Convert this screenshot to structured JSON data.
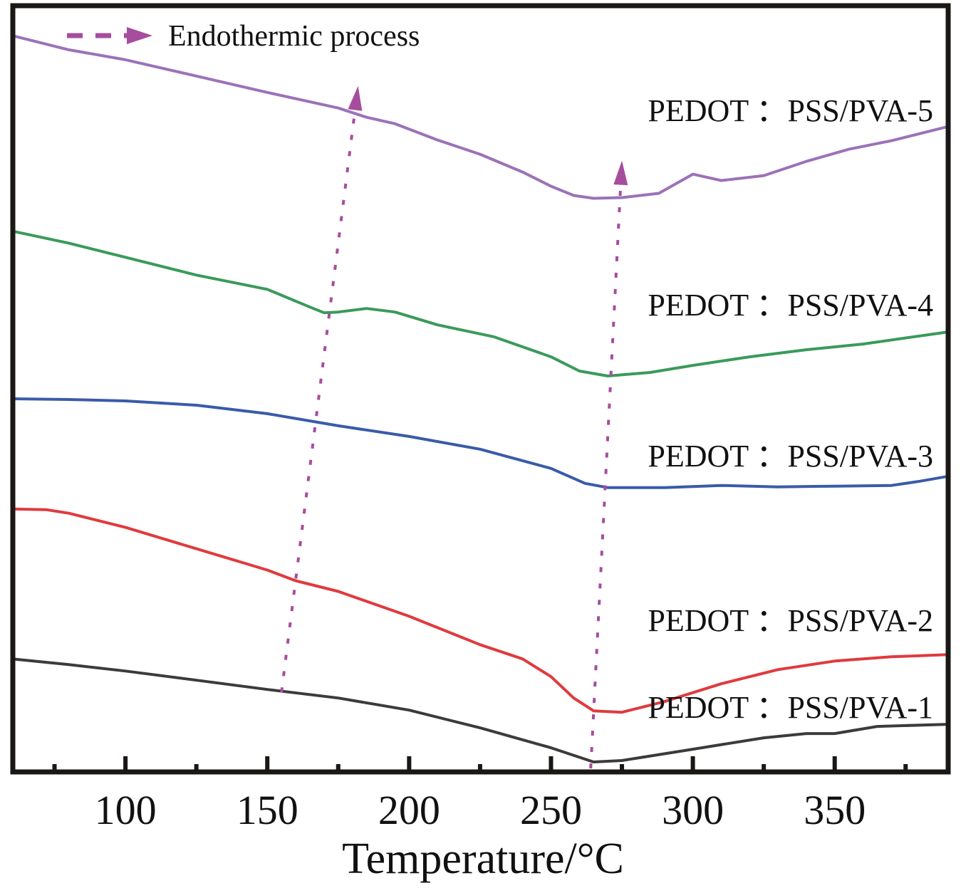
{
  "chart_data": {
    "type": "line",
    "title": "",
    "xlabel": "Temperature/°C",
    "ylabel": "",
    "xlim": [
      60.3,
      390
    ],
    "ylim": [
      0,
      107.8
    ],
    "y_units": "heat flow (a.u., up = exothermic baseline, dips = endothermic)",
    "x_major_ticks": [
      100,
      150,
      200,
      250,
      300,
      350
    ],
    "x_minor_ticks": [
      75,
      125,
      175,
      225,
      275,
      325,
      375
    ],
    "x_tick_labels": [
      "100",
      "150",
      "200",
      "250",
      "300",
      "350"
    ],
    "grid": false,
    "legend": {
      "position": "top-left",
      "entries": [
        {
          "label": "Endothermic process",
          "style": "dashed-arrow",
          "color": "#a64d9e"
        }
      ]
    },
    "series": [
      {
        "name": "PEDOT：PSS/PVA-5",
        "label": "PEDOT ：PSS/PVA-5",
        "color": "#9b72b8",
        "x": [
          60,
          80,
          100,
          125,
          150,
          175,
          185,
          195,
          210,
          225,
          240,
          250,
          258,
          265,
          275,
          288,
          300,
          310,
          325,
          340,
          355,
          370,
          390
        ],
        "y": [
          103.6,
          101.6,
          100.2,
          97.9,
          95.6,
          93.4,
          92.1,
          91.2,
          88.9,
          86.9,
          84.4,
          82.4,
          81.1,
          80.7,
          80.8,
          81.4,
          84.1,
          83.2,
          83.9,
          85.9,
          87.6,
          88.8,
          90.8
        ]
      },
      {
        "name": "PEDOT：PSS/PVA-4",
        "label": "PEDOT ：PSS/PVA-4",
        "color": "#3a9a5b",
        "x": [
          60,
          80,
          100,
          125,
          150,
          165,
          170,
          175,
          185,
          195,
          210,
          230,
          250,
          260,
          270,
          285,
          300,
          320,
          340,
          360,
          390
        ],
        "y": [
          76.1,
          74.4,
          72.4,
          69.9,
          67.9,
          65.4,
          64.6,
          64.7,
          65.2,
          64.7,
          62.9,
          61.2,
          58.4,
          56.4,
          55.7,
          56.2,
          57.2,
          58.4,
          59.4,
          60.2,
          61.9
        ]
      },
      {
        "name": "PEDOT：PSS/PVA-3",
        "label": "PEDOT ：PSS/PVA-3",
        "color": "#3a5ba8",
        "x": [
          60,
          80,
          100,
          125,
          150,
          175,
          200,
          225,
          250,
          262,
          270,
          290,
          310,
          330,
          350,
          370,
          380,
          390
        ],
        "y": [
          52.5,
          52.4,
          52.2,
          51.6,
          50.4,
          48.7,
          47.2,
          45.4,
          42.7,
          40.6,
          40.0,
          40.0,
          40.3,
          40.1,
          40.2,
          40.3,
          40.9,
          41.6
        ]
      },
      {
        "name": "PEDOT：PSS/PVA-2",
        "label": "PEDOT ：PSS/PVA-2",
        "color": "#e03a3e",
        "x": [
          60,
          72,
          80,
          100,
          125,
          150,
          160,
          175,
          200,
          225,
          240,
          250,
          258,
          265,
          275,
          290,
          310,
          330,
          350,
          370,
          390
        ],
        "y": [
          37.0,
          36.9,
          36.4,
          34.4,
          31.4,
          28.4,
          26.9,
          25.4,
          21.9,
          17.9,
          15.9,
          13.4,
          10.4,
          8.6,
          8.4,
          9.9,
          12.4,
          14.4,
          15.6,
          16.2,
          16.5
        ]
      },
      {
        "name": "PEDOT：PSS/PVA-1",
        "label": "PEDOT ：PSS/PVA-1",
        "color": "#3d3a3a",
        "x": [
          60,
          80,
          100,
          125,
          150,
          175,
          200,
          225,
          250,
          265,
          275,
          300,
          325,
          340,
          350,
          365,
          390
        ],
        "y": [
          15.9,
          15.1,
          14.2,
          12.9,
          11.6,
          10.4,
          8.7,
          6.2,
          3.4,
          1.4,
          1.6,
          3.2,
          4.8,
          5.4,
          5.4,
          6.4,
          6.7
        ]
      }
    ],
    "annotations": [
      {
        "type": "dotted-arrow",
        "description": "Endothermic process trend (first peak)",
        "from": [
          155,
          11.2
        ],
        "to": [
          182,
          96.5
        ],
        "color": "#a64d9e"
      },
      {
        "type": "dotted-arrow",
        "description": "Endothermic process trend (main peak)",
        "from": [
          264,
          0.5
        ],
        "to": [
          275,
          86.0
        ],
        "color": "#a64d9e"
      }
    ]
  }
}
